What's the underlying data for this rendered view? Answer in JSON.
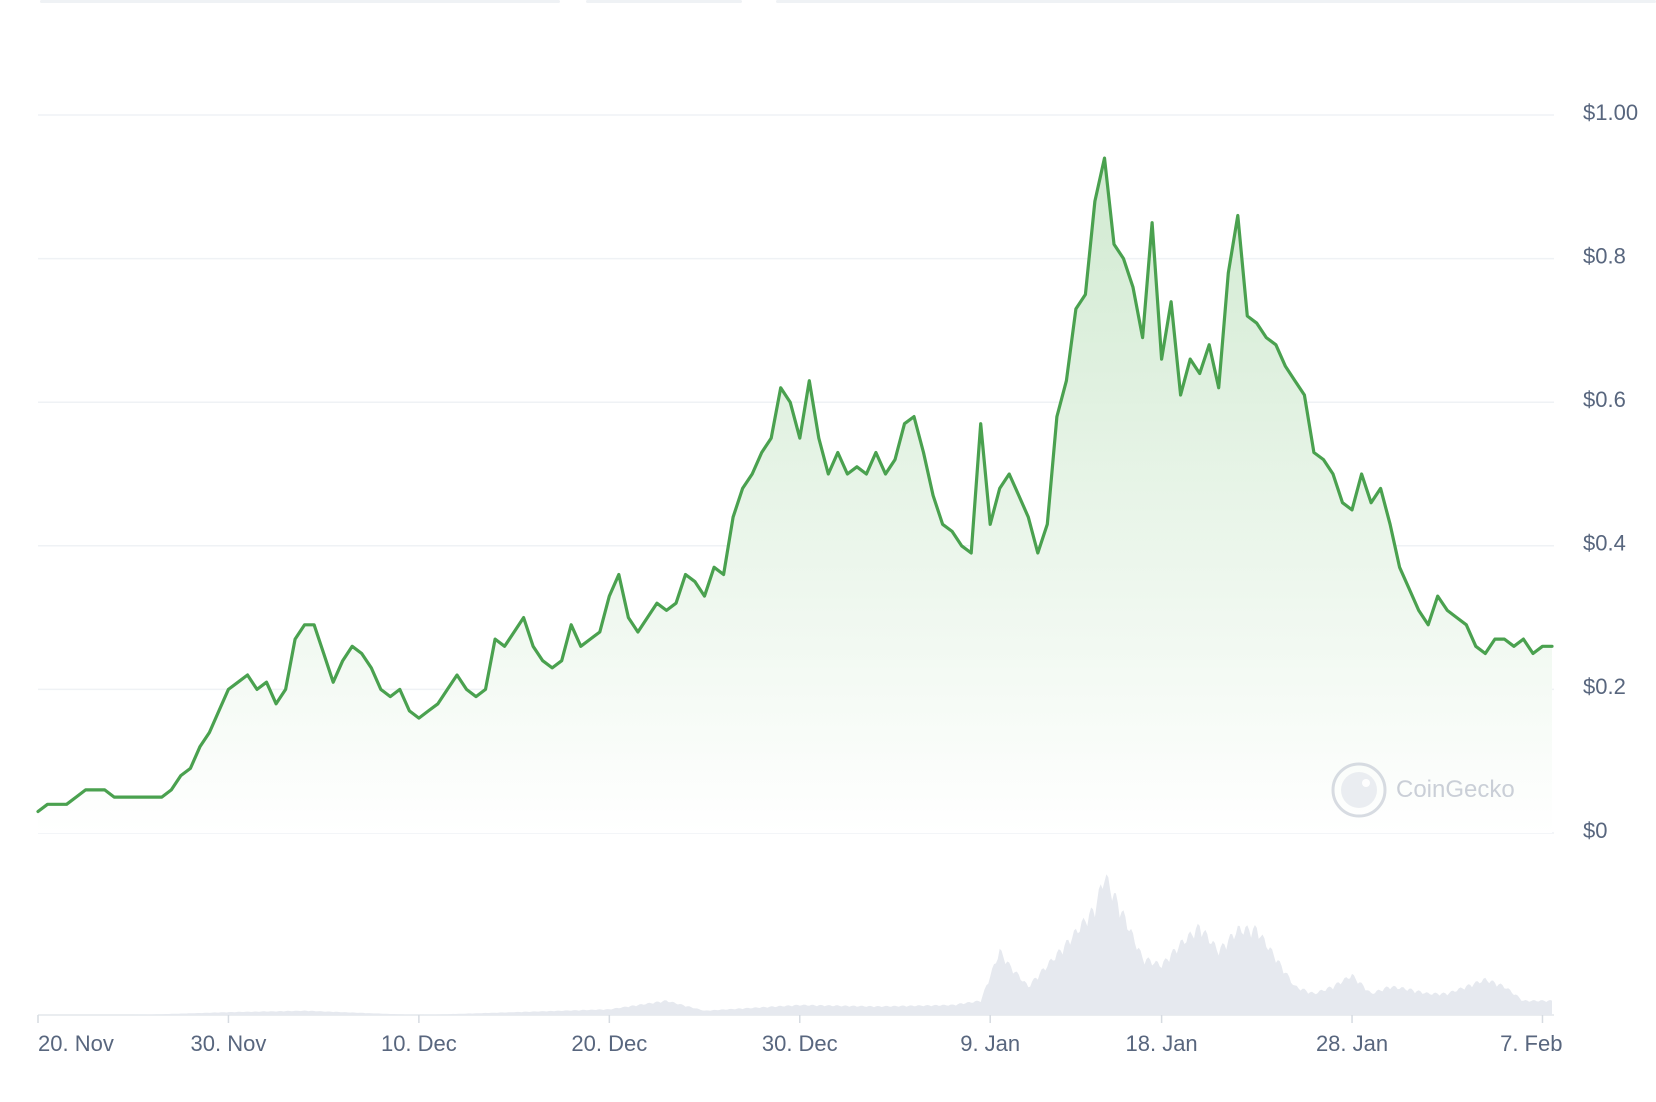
{
  "colors": {
    "line": "#4aa14f",
    "fill_top": "#cfe9cf",
    "fill_bottom": "#ffffff",
    "grid": "#eff2f5",
    "volume": "#e6e9ef",
    "tick_text": "#58667e",
    "watermark": "#c5cbd4"
  },
  "watermark": {
    "label": "CoinGecko",
    "icon": "gecko-icon"
  },
  "chart_data": {
    "type": "area",
    "grid": "horizontal",
    "y_ticks": [
      "$1.00",
      "$0.8",
      "$0.6",
      "$0.4",
      "$0.2",
      "$0"
    ],
    "y_tick_values": [
      1.0,
      0.8,
      0.6,
      0.4,
      0.2,
      0
    ],
    "ylim": [
      0,
      1.0
    ],
    "x_ticks": [
      "20. Nov",
      "30. Nov",
      "10. Dec",
      "20. Dec",
      "30. Dec",
      "9. Jan",
      "18. Jan",
      "28. Jan",
      "7. Feb"
    ],
    "x_tick_days": [
      0,
      10,
      20,
      30,
      40,
      50,
      59,
      69,
      79
    ],
    "xlim_days": [
      0,
      79.5
    ],
    "series": [
      {
        "values_day_price": [
          [
            0.0,
            0.03
          ],
          [
            0.5,
            0.04
          ],
          [
            1.0,
            0.04
          ],
          [
            1.5,
            0.04
          ],
          [
            2.0,
            0.05
          ],
          [
            2.5,
            0.06
          ],
          [
            3.0,
            0.06
          ],
          [
            3.5,
            0.06
          ],
          [
            4.0,
            0.05
          ],
          [
            4.5,
            0.05
          ],
          [
            5.0,
            0.05
          ],
          [
            6.0,
            0.05
          ],
          [
            6.5,
            0.05
          ],
          [
            7.0,
            0.06
          ],
          [
            7.5,
            0.08
          ],
          [
            8.0,
            0.09
          ],
          [
            8.5,
            0.12
          ],
          [
            9.0,
            0.14
          ],
          [
            9.5,
            0.17
          ],
          [
            10.0,
            0.2
          ],
          [
            10.5,
            0.21
          ],
          [
            11.0,
            0.22
          ],
          [
            11.5,
            0.2
          ],
          [
            12.0,
            0.21
          ],
          [
            12.5,
            0.18
          ],
          [
            13.0,
            0.2
          ],
          [
            13.5,
            0.27
          ],
          [
            14.0,
            0.29
          ],
          [
            14.5,
            0.29
          ],
          [
            15.0,
            0.25
          ],
          [
            15.5,
            0.21
          ],
          [
            16.0,
            0.24
          ],
          [
            16.5,
            0.26
          ],
          [
            17.0,
            0.25
          ],
          [
            17.5,
            0.23
          ],
          [
            18.0,
            0.2
          ],
          [
            18.5,
            0.19
          ],
          [
            19.0,
            0.2
          ],
          [
            19.5,
            0.17
          ],
          [
            20.0,
            0.16
          ],
          [
            20.5,
            0.17
          ],
          [
            21.0,
            0.18
          ],
          [
            21.5,
            0.2
          ],
          [
            22.0,
            0.22
          ],
          [
            22.5,
            0.2
          ],
          [
            23.0,
            0.19
          ],
          [
            23.5,
            0.2
          ],
          [
            24.0,
            0.27
          ],
          [
            24.5,
            0.26
          ],
          [
            25.0,
            0.28
          ],
          [
            25.5,
            0.3
          ],
          [
            26.0,
            0.26
          ],
          [
            26.5,
            0.24
          ],
          [
            27.0,
            0.23
          ],
          [
            27.5,
            0.24
          ],
          [
            28.0,
            0.29
          ],
          [
            28.5,
            0.26
          ],
          [
            29.0,
            0.27
          ],
          [
            29.5,
            0.28
          ],
          [
            30.0,
            0.33
          ],
          [
            30.5,
            0.36
          ],
          [
            31.0,
            0.3
          ],
          [
            31.5,
            0.28
          ],
          [
            32.0,
            0.3
          ],
          [
            32.5,
            0.32
          ],
          [
            33.0,
            0.31
          ],
          [
            33.5,
            0.32
          ],
          [
            34.0,
            0.36
          ],
          [
            34.5,
            0.35
          ],
          [
            35.0,
            0.33
          ],
          [
            35.5,
            0.37
          ],
          [
            36.0,
            0.36
          ],
          [
            36.5,
            0.44
          ],
          [
            37.0,
            0.48
          ],
          [
            37.5,
            0.5
          ],
          [
            38.0,
            0.53
          ],
          [
            38.5,
            0.55
          ],
          [
            39.0,
            0.62
          ],
          [
            39.5,
            0.6
          ],
          [
            40.0,
            0.55
          ],
          [
            40.5,
            0.63
          ],
          [
            41.0,
            0.55
          ],
          [
            41.5,
            0.5
          ],
          [
            42.0,
            0.53
          ],
          [
            42.5,
            0.5
          ],
          [
            43.0,
            0.51
          ],
          [
            43.5,
            0.5
          ],
          [
            44.0,
            0.53
          ],
          [
            44.5,
            0.5
          ],
          [
            45.0,
            0.52
          ],
          [
            45.5,
            0.57
          ],
          [
            46.0,
            0.58
          ],
          [
            46.5,
            0.53
          ],
          [
            47.0,
            0.47
          ],
          [
            47.5,
            0.43
          ],
          [
            48.0,
            0.42
          ],
          [
            48.5,
            0.4
          ],
          [
            49.0,
            0.39
          ],
          [
            49.5,
            0.57
          ],
          [
            50.0,
            0.43
          ],
          [
            50.5,
            0.48
          ],
          [
            51.0,
            0.5
          ],
          [
            51.5,
            0.47
          ],
          [
            52.0,
            0.44
          ],
          [
            52.5,
            0.39
          ],
          [
            53.0,
            0.43
          ],
          [
            53.5,
            0.58
          ],
          [
            54.0,
            0.63
          ],
          [
            54.5,
            0.73
          ],
          [
            55.0,
            0.75
          ],
          [
            55.5,
            0.88
          ],
          [
            56.0,
            0.94
          ],
          [
            56.5,
            0.82
          ],
          [
            57.0,
            0.8
          ],
          [
            57.5,
            0.76
          ],
          [
            58.0,
            0.69
          ],
          [
            58.5,
            0.85
          ],
          [
            59.0,
            0.66
          ],
          [
            59.5,
            0.74
          ],
          [
            60.0,
            0.61
          ],
          [
            60.5,
            0.66
          ],
          [
            61.0,
            0.64
          ],
          [
            61.5,
            0.68
          ],
          [
            62.0,
            0.62
          ],
          [
            62.5,
            0.78
          ],
          [
            63.0,
            0.86
          ],
          [
            63.5,
            0.72
          ],
          [
            64.0,
            0.71
          ],
          [
            64.5,
            0.69
          ],
          [
            65.0,
            0.68
          ],
          [
            65.5,
            0.65
          ],
          [
            66.0,
            0.63
          ],
          [
            66.5,
            0.61
          ],
          [
            67.0,
            0.53
          ],
          [
            67.5,
            0.52
          ],
          [
            68.0,
            0.5
          ],
          [
            68.5,
            0.46
          ],
          [
            69.0,
            0.45
          ],
          [
            69.5,
            0.5
          ],
          [
            70.0,
            0.46
          ],
          [
            70.5,
            0.48
          ],
          [
            71.0,
            0.43
          ],
          [
            71.5,
            0.37
          ],
          [
            72.0,
            0.34
          ],
          [
            72.5,
            0.31
          ],
          [
            73.0,
            0.29
          ],
          [
            73.5,
            0.33
          ],
          [
            74.0,
            0.31
          ],
          [
            74.5,
            0.3
          ],
          [
            75.0,
            0.29
          ],
          [
            75.5,
            0.26
          ],
          [
            76.0,
            0.25
          ],
          [
            76.5,
            0.27
          ],
          [
            77.0,
            0.27
          ],
          [
            77.5,
            0.26
          ],
          [
            78.0,
            0.27
          ],
          [
            78.5,
            0.25
          ],
          [
            79.0,
            0.26
          ],
          [
            79.5,
            0.26
          ]
        ],
        "volume_day_level": [
          [
            0.0,
            0.0
          ],
          [
            5.0,
            0.0
          ],
          [
            10.0,
            0.02
          ],
          [
            14.0,
            0.03
          ],
          [
            20.0,
            0.0
          ],
          [
            30.0,
            0.04
          ],
          [
            33.0,
            0.1
          ],
          [
            35.0,
            0.03
          ],
          [
            40.0,
            0.07
          ],
          [
            44.0,
            0.06
          ],
          [
            48.0,
            0.07
          ],
          [
            49.5,
            0.1
          ],
          [
            50.5,
            0.45
          ],
          [
            51.0,
            0.35
          ],
          [
            52.0,
            0.2
          ],
          [
            54.0,
            0.5
          ],
          [
            55.5,
            0.75
          ],
          [
            56.0,
            0.98
          ],
          [
            57.0,
            0.7
          ],
          [
            58.0,
            0.4
          ],
          [
            59.0,
            0.35
          ],
          [
            60.0,
            0.5
          ],
          [
            61.0,
            0.62
          ],
          [
            62.0,
            0.45
          ],
          [
            63.0,
            0.6
          ],
          [
            64.0,
            0.6
          ],
          [
            65.0,
            0.4
          ],
          [
            66.0,
            0.2
          ],
          [
            67.0,
            0.15
          ],
          [
            68.0,
            0.2
          ],
          [
            69.0,
            0.28
          ],
          [
            70.0,
            0.15
          ],
          [
            71.0,
            0.2
          ],
          [
            72.0,
            0.18
          ],
          [
            73.0,
            0.15
          ],
          [
            74.0,
            0.15
          ],
          [
            75.0,
            0.2
          ],
          [
            76.0,
            0.25
          ],
          [
            77.0,
            0.2
          ],
          [
            78.0,
            0.1
          ],
          [
            79.0,
            0.1
          ],
          [
            79.5,
            0.1
          ]
        ]
      }
    ]
  }
}
